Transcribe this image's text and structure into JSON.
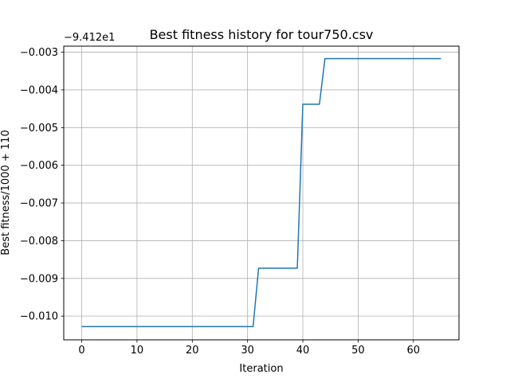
{
  "chart_data": {
    "type": "line",
    "title": "Best fitness history for tour750.csv",
    "xlabel": "Iteration",
    "ylabel": "Best fitness/1000 + 110",
    "y_offset_label": "−9.412e1",
    "xlim": [
      -3.25,
      68.25
    ],
    "ylim": [
      -0.01063,
      -0.00284
    ],
    "grid": true,
    "x_ticks": [
      0,
      10,
      20,
      30,
      40,
      50,
      60
    ],
    "x_tick_labels": [
      "0",
      "10",
      "20",
      "30",
      "40",
      "50",
      "60"
    ],
    "y_ticks": [
      -0.01,
      -0.009,
      -0.008,
      -0.007,
      -0.006,
      -0.005,
      -0.004,
      -0.003
    ],
    "y_tick_labels": [
      "−0.010",
      "−0.009",
      "−0.008",
      "−0.007",
      "−0.006",
      "−0.005",
      "−0.004",
      "−0.003"
    ],
    "series": [
      {
        "color": "#1f77b4",
        "x": [
          0,
          31,
          32,
          39,
          40,
          43,
          44,
          65
        ],
        "y": [
          -0.01028,
          -0.01028,
          -0.00873,
          -0.00873,
          -0.00438,
          -0.00438,
          -0.00317,
          -0.00317
        ]
      }
    ]
  }
}
